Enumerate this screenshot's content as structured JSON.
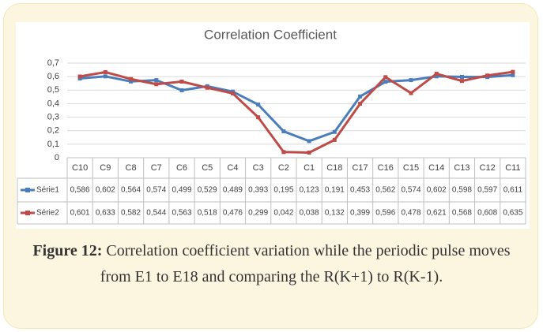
{
  "chart_data": {
    "type": "line",
    "title": "Correlation Coefficient",
    "categories": [
      "C10",
      "C9",
      "C8",
      "C7",
      "C6",
      "C5",
      "C4",
      "C3",
      "C2",
      "C1",
      "C18",
      "C17",
      "C16",
      "C15",
      "C14",
      "C13",
      "C12",
      "C11"
    ],
    "series": [
      {
        "name": "Série1",
        "color": "#4a7ebb",
        "values": [
          0.586,
          0.602,
          0.564,
          0.574,
          0.499,
          0.529,
          0.489,
          0.393,
          0.195,
          0.123,
          0.191,
          0.453,
          0.562,
          0.574,
          0.602,
          0.598,
          0.597,
          0.611
        ],
        "value_labels": [
          "0,586",
          "0,602",
          "0,564",
          "0,574",
          "0,499",
          "0,529",
          "0,489",
          "0,393",
          "0,195",
          "0,123",
          "0,191",
          "0,453",
          "0,562",
          "0,574",
          "0,602",
          "0,598",
          "0,597",
          "0,611"
        ]
      },
      {
        "name": "Série2",
        "color": "#be4b48",
        "values": [
          0.601,
          0.633,
          0.582,
          0.544,
          0.563,
          0.518,
          0.476,
          0.299,
          0.042,
          0.038,
          0.132,
          0.399,
          0.596,
          0.478,
          0.621,
          0.568,
          0.608,
          0.635
        ],
        "value_labels": [
          "0,601",
          "0,633",
          "0,582",
          "0,544",
          "0,563",
          "0,518",
          "0,476",
          "0,299",
          "0,042",
          "0,038",
          "0,132",
          "0,399",
          "0,596",
          "0,478",
          "0,621",
          "0,568",
          "0,608",
          "0,635"
        ]
      }
    ],
    "ylim": [
      0,
      0.7
    ],
    "yticks": [
      0,
      {
        "value": 0.1,
        "label": "0,1"
      },
      {
        "value": 0.2,
        "label": "0,2"
      },
      {
        "value": 0.3,
        "label": "0,3"
      },
      {
        "value": 0.4,
        "label": "0,4"
      },
      {
        "value": 0.5,
        "label": "0,5"
      },
      {
        "value": 0.6,
        "label": "0,6"
      },
      {
        "value": 0.7,
        "label": "0,7"
      }
    ],
    "grid": true
  },
  "caption": {
    "label": "Figure 12:",
    "text": "Correlation coefficient variation while the periodic pulse moves from E1 to E18 and comparing the R(K+1) to R(K-1)."
  }
}
